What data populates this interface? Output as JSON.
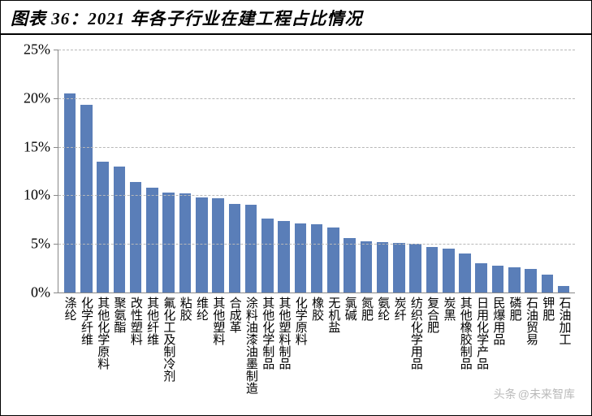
{
  "title": "图表 36：2021 年各子行业在建工程占比情况",
  "chart": {
    "type": "bar",
    "ylim": [
      0,
      25
    ],
    "ytick_step": 5,
    "y_unit": "%",
    "bar_color": "#5a7eb8",
    "grid_color": "#b8b8b8",
    "axis_color": "#888888",
    "background_color": "#ffffff",
    "label_fontsize": 15,
    "ylabel_fontsize": 18,
    "categories": [
      "涤纶",
      "化学纤维",
      "其他化学原料",
      "聚氨酯",
      "改性塑料",
      "其他纤维",
      "氟化工及制冷剂",
      "粘胶",
      "维纶",
      "其他塑料",
      "合成革",
      "涂料油漆油墨制造",
      "其他化学制品",
      "其他塑料制品",
      "化学原料",
      "橡胶",
      "无机盐",
      "氯碱",
      "氮肥",
      "氨纶",
      "炭纤",
      "纺织化学用品",
      "复合肥",
      "炭黑",
      "其他橡胶制品",
      "日用化学产品",
      "民爆用品",
      "磷肥",
      "石油贸易",
      "钾肥",
      "石油加工"
    ],
    "values": [
      20.5,
      19.3,
      13.5,
      13.0,
      11.4,
      10.8,
      10.3,
      10.2,
      9.8,
      9.7,
      9.1,
      9.0,
      7.6,
      7.4,
      7.1,
      7.0,
      6.7,
      5.6,
      5.3,
      5.2,
      5.1,
      5.0,
      4.7,
      4.5,
      4.0,
      3.0,
      2.8,
      2.6,
      2.4,
      1.8,
      0.7
    ]
  },
  "watermark": {
    "icon": "头条",
    "text": "@未来智库"
  }
}
